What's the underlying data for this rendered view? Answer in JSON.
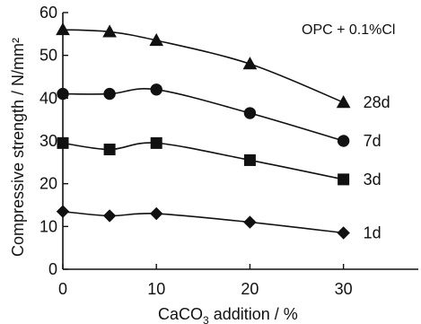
{
  "chart_data": {
    "type": "line",
    "annotation": "OPC + 0.1%Cl",
    "xlabel": "CaCO",
    "xlabel_sub": "3",
    "xlabel_rest": " addition / %",
    "ylabel": "Compressive strength / N/mm²",
    "xlim": [
      0,
      38
    ],
    "ylim": [
      0,
      60
    ],
    "x_ticks": [
      0,
      10,
      20,
      30
    ],
    "y_ticks": [
      0,
      10,
      20,
      30,
      40,
      50,
      60
    ],
    "x": [
      0,
      5,
      10,
      20,
      30
    ],
    "series": [
      {
        "name": "28d",
        "marker": "triangle",
        "values": [
          56,
          55.5,
          53.5,
          48,
          39
        ]
      },
      {
        "name": "7d",
        "marker": "circle",
        "values": [
          41,
          41,
          42,
          36.5,
          30
        ]
      },
      {
        "name": "3d",
        "marker": "square",
        "values": [
          29.5,
          28,
          29.5,
          25.5,
          21
        ]
      },
      {
        "name": "1d",
        "marker": "diamond",
        "values": [
          13.5,
          12.5,
          13,
          11,
          8.5
        ]
      }
    ],
    "grid": false,
    "legend": "series labels at right end of lines"
  }
}
